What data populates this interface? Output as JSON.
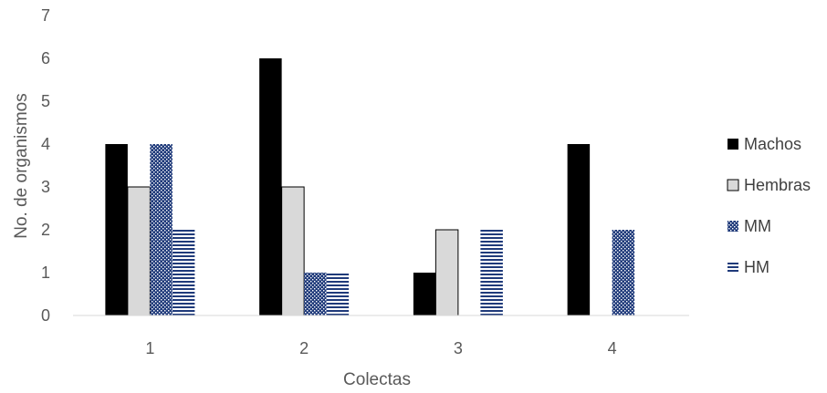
{
  "chart_data": {
    "type": "bar",
    "title": "",
    "xlabel": "Colectas",
    "ylabel": "No. de organismos",
    "categories": [
      "1",
      "2",
      "3",
      "4"
    ],
    "ylim": [
      0,
      7
    ],
    "yticks": [
      "0",
      "1",
      "2",
      "3",
      "4",
      "5",
      "6",
      "7"
    ],
    "grid": false,
    "legend_position": "right",
    "series": [
      {
        "name": "Machos",
        "values": [
          4,
          6,
          1,
          4
        ],
        "color": "#000000",
        "pattern": "solid"
      },
      {
        "name": "Hembras",
        "values": [
          3,
          3,
          2,
          0
        ],
        "color": "#d9d9d9",
        "pattern": "solid-outlined"
      },
      {
        "name": "MM",
        "values": [
          4,
          1,
          0,
          2
        ],
        "color": "#1f3a7a",
        "pattern": "dots"
      },
      {
        "name": "HM",
        "values": [
          2,
          1,
          2,
          0
        ],
        "color": "#1f3a7a",
        "pattern": "horizontal-lines"
      }
    ]
  }
}
